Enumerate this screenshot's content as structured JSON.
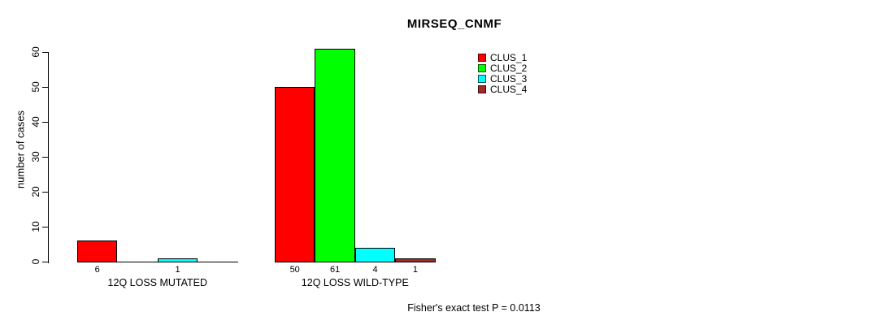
{
  "title": "MIRSEQ_CNMF",
  "chart_data": {
    "type": "bar",
    "title": "MIRSEQ_CNMF",
    "xlabel": "",
    "ylabel": "number of cases",
    "ylim": [
      0,
      60
    ],
    "yticks": [
      0,
      10,
      20,
      30,
      40,
      50,
      60
    ],
    "grid": false,
    "legend_position": "top-right",
    "categories": [
      "12Q LOSS MUTATED",
      "12Q LOSS WILD-TYPE"
    ],
    "series": [
      {
        "name": "CLUS_1",
        "color": "#FF0000",
        "values": [
          6,
          50
        ]
      },
      {
        "name": "CLUS_2",
        "color": "#00FF00",
        "values": [
          0,
          61
        ]
      },
      {
        "name": "CLUS_3",
        "color": "#00FFFF",
        "values": [
          1,
          4
        ]
      },
      {
        "name": "CLUS_4",
        "color": "#A52A2A",
        "values": [
          0,
          1
        ]
      }
    ],
    "bar_value_labels": {
      "12Q LOSS MUTATED": [
        6,
        null,
        1,
        null
      ],
      "12Q LOSS WILD-TYPE": [
        50,
        61,
        4,
        1
      ]
    },
    "annotation": "Fisher's exact test P = 0.0113"
  }
}
